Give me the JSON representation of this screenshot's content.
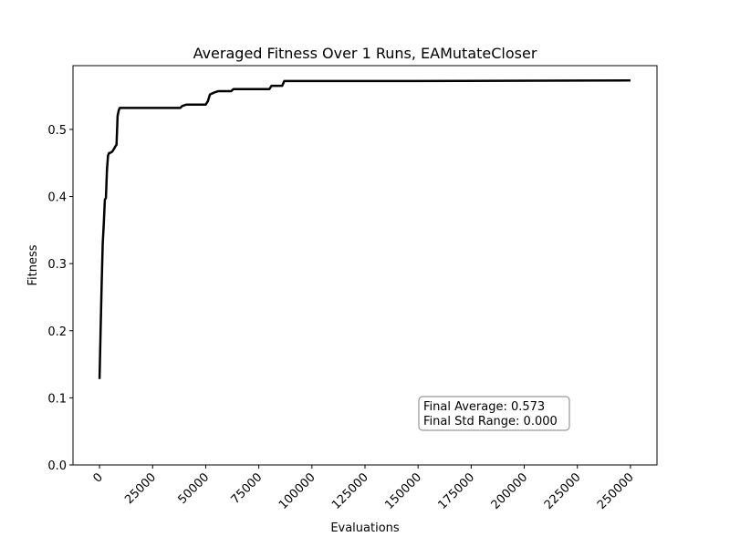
{
  "chart_data": {
    "type": "line",
    "title": "Averaged Fitness Over 1 Runs, EAMutateCloser",
    "xlabel": "Evaluations",
    "ylabel": "Fitness",
    "xlim": [
      -12500,
      262500
    ],
    "ylim": [
      0.0,
      0.595
    ],
    "x_ticks": [
      0,
      25000,
      50000,
      75000,
      100000,
      125000,
      150000,
      175000,
      200000,
      225000,
      250000
    ],
    "x_tick_labels": [
      "0",
      "25000",
      "50000",
      "75000",
      "100000",
      "125000",
      "150000",
      "175000",
      "200000",
      "225000",
      "250000"
    ],
    "y_ticks": [
      0.0,
      0.1,
      0.2,
      0.3,
      0.4,
      0.5
    ],
    "y_tick_labels": [
      "0.0",
      "0.1",
      "0.2",
      "0.3",
      "0.4",
      "0.5"
    ],
    "grid": false,
    "line_color": "#000000",
    "series": [
      {
        "x": [
          0,
          500,
          1000,
          1500,
          2000,
          2500,
          3000,
          3500,
          4000,
          4500,
          5000,
          6000,
          7000,
          7500,
          8000,
          8500,
          9000,
          9500,
          10000,
          38000,
          39000,
          41000,
          50000,
          51000,
          52000,
          54000,
          56000,
          62000,
          63000,
          80000,
          81000,
          86000,
          87000,
          150000,
          250000
        ],
        "y": [
          0.128,
          0.2,
          0.27,
          0.33,
          0.36,
          0.395,
          0.398,
          0.44,
          0.461,
          0.465,
          0.465,
          0.467,
          0.472,
          0.475,
          0.477,
          0.52,
          0.528,
          0.532,
          0.532,
          0.532,
          0.535,
          0.537,
          0.537,
          0.542,
          0.552,
          0.555,
          0.557,
          0.557,
          0.56,
          0.56,
          0.565,
          0.565,
          0.572,
          0.572,
          0.573
        ]
      }
    ],
    "annotation": {
      "lines": [
        "Final Average: 0.573",
        "Final Std Range: 0.000"
      ]
    }
  }
}
